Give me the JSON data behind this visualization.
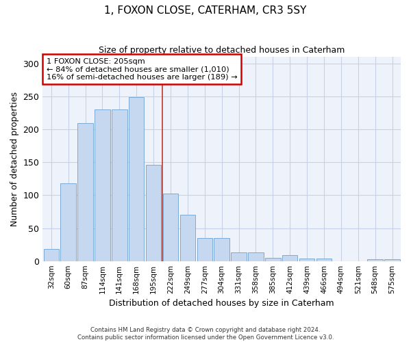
{
  "title": "1, FOXON CLOSE, CATERHAM, CR3 5SY",
  "subtitle": "Size of property relative to detached houses in Caterham",
  "xlabel": "Distribution of detached houses by size in Caterham",
  "ylabel": "Number of detached properties",
  "bar_color": "#c5d8f0",
  "bar_edge_color": "#7baad4",
  "background_color": "#eef2fb",
  "categories": [
    "32sqm",
    "60sqm",
    "87sqm",
    "114sqm",
    "141sqm",
    "168sqm",
    "195sqm",
    "222sqm",
    "249sqm",
    "277sqm",
    "304sqm",
    "331sqm",
    "358sqm",
    "385sqm",
    "412sqm",
    "439sqm",
    "466sqm",
    "494sqm",
    "521sqm",
    "548sqm",
    "575sqm"
  ],
  "values": [
    18,
    118,
    209,
    230,
    230,
    249,
    146,
    102,
    70,
    35,
    35,
    13,
    13,
    5,
    9,
    4,
    4,
    0,
    0,
    3,
    3
  ],
  "ylim": [
    0,
    310
  ],
  "yticks": [
    0,
    50,
    100,
    150,
    200,
    250,
    300
  ],
  "property_label": "1 FOXON CLOSE: 205sqm",
  "annotation_line1": "← 84% of detached houses are smaller (1,010)",
  "annotation_line2": "16% of semi-detached houses are larger (189) →",
  "annotation_box_color": "#ffffff",
  "annotation_border_color": "#cc0000",
  "marker_bar_index": 6,
  "footer_line1": "Contains HM Land Registry data © Crown copyright and database right 2024.",
  "footer_line2": "Contains public sector information licensed under the Open Government Licence v3.0."
}
